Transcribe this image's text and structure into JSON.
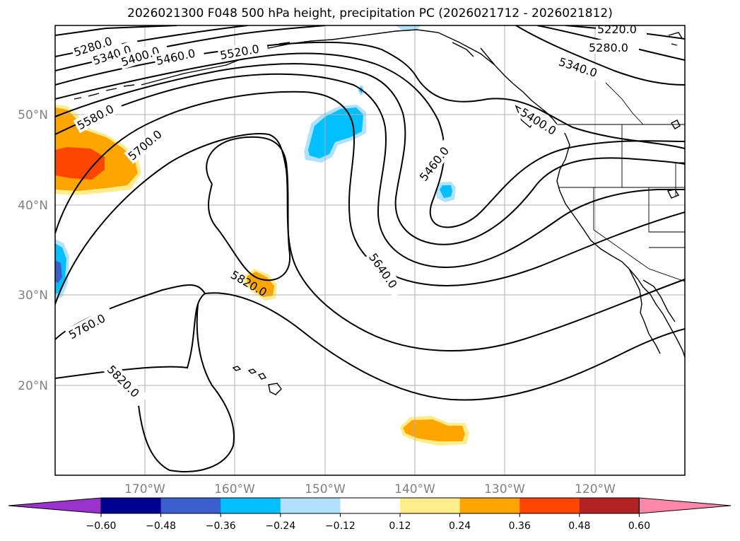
{
  "title": "2026021300 F048 500 hPa height, precipitation PC (2026021712 - 2026021812)",
  "map": {
    "lon_ticks": [
      "170°W",
      "160°W",
      "150°W",
      "140°W",
      "130°W",
      "120°W"
    ],
    "lat_ticks": [
      "50°N",
      "40°N",
      "30°N",
      "20°N"
    ],
    "contour_labels": [
      "5220.0",
      "5280.0",
      "5340.0",
      "5400.0",
      "5460.0",
      "5520.0",
      "5580.0",
      "5700.0",
      "5460.0",
      "5400.0",
      "5340.0",
      "5280.0",
      "5640.0",
      "5820.0",
      "5760.0",
      "5820.0"
    ],
    "contour_color": "#000000",
    "grid_color": "#b0b0b0"
  },
  "colorbar": {
    "ticks": [
      "−0.60",
      "−0.48",
      "−0.36",
      "−0.24",
      "−0.12",
      "0.12",
      "0.24",
      "0.36",
      "0.48",
      "0.60"
    ],
    "colors": [
      "#9933cc",
      "#000090",
      "#3a5fcd",
      "#00bfff",
      "#b0e2ff",
      "#ffffff",
      "#ffec8b",
      "#ffa500",
      "#ff4500",
      "#b22222",
      "#ff88aa"
    ]
  }
}
